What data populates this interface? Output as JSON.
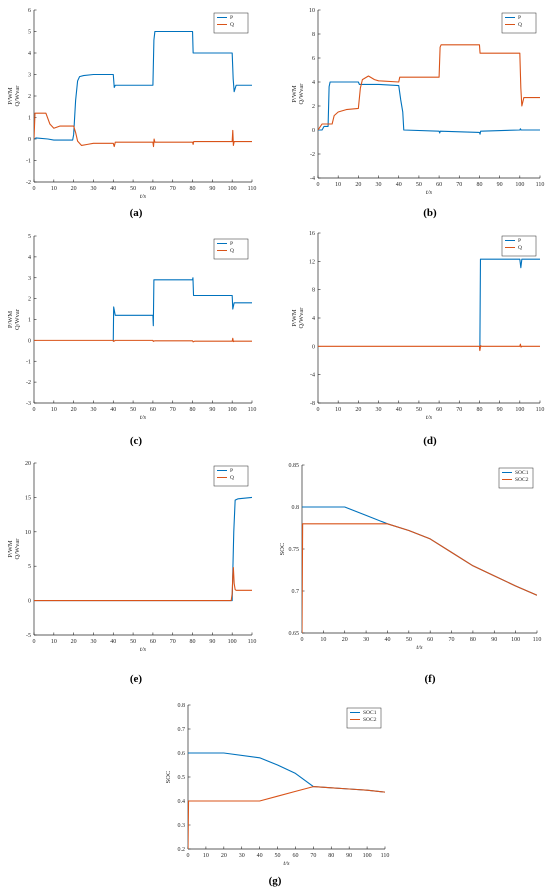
{
  "colors": {
    "series1": "#0072BD",
    "series2": "#D95319",
    "axis": "#262626"
  },
  "chart_data": [
    {
      "id": "a",
      "caption": "(a)",
      "type": "line",
      "xlabel": "t/s",
      "ylabel": "P/WM\nQ/Wvar",
      "xlim": [
        0,
        110
      ],
      "ylim": [
        -2,
        6
      ],
      "xticks": [
        0,
        10,
        20,
        30,
        40,
        50,
        60,
        70,
        80,
        90,
        100,
        110
      ],
      "yticks": [
        -2,
        -1,
        0,
        1,
        2,
        3,
        4,
        5,
        6
      ],
      "legend_position": "top-right",
      "series": [
        {
          "name": "P",
          "color": "#0072BD",
          "points": [
            [
              0,
              0
            ],
            [
              1,
              0.05
            ],
            [
              7,
              0
            ],
            [
              10,
              -0.05
            ],
            [
              19.5,
              -0.05
            ],
            [
              20,
              0.2
            ],
            [
              21,
              1.8
            ],
            [
              22,
              2.7
            ],
            [
              23,
              2.9
            ],
            [
              25,
              2.95
            ],
            [
              30,
              3.0
            ],
            [
              40,
              3.0
            ],
            [
              40.5,
              2.4
            ],
            [
              41,
              2.5
            ],
            [
              60,
              2.5
            ],
            [
              60.5,
              4.6
            ],
            [
              61,
              5.0
            ],
            [
              80,
              5.0
            ],
            [
              80.3,
              4.0
            ],
            [
              100,
              4.0
            ],
            [
              100.5,
              2.8
            ],
            [
              101,
              2.2
            ],
            [
              102,
              2.5
            ],
            [
              110,
              2.5
            ]
          ]
        },
        {
          "name": "Q",
          "color": "#D95319",
          "points": [
            [
              0,
              0
            ],
            [
              0.5,
              1.2
            ],
            [
              6,
              1.2
            ],
            [
              8,
              0.7
            ],
            [
              10,
              0.5
            ],
            [
              13,
              0.6
            ],
            [
              20,
              0.6
            ],
            [
              21,
              0.3
            ],
            [
              22,
              -0.1
            ],
            [
              24,
              -0.3
            ],
            [
              27,
              -0.25
            ],
            [
              30,
              -0.2
            ],
            [
              40,
              -0.2
            ],
            [
              40.5,
              -0.35
            ],
            [
              41,
              -0.15
            ],
            [
              60,
              -0.15
            ],
            [
              60.3,
              -0.35
            ],
            [
              60.6,
              0.0
            ],
            [
              61,
              -0.15
            ],
            [
              80,
              -0.15
            ],
            [
              80.3,
              -0.25
            ],
            [
              80.6,
              -0.12
            ],
            [
              100,
              -0.12
            ],
            [
              100.3,
              0.4
            ],
            [
              100.6,
              -0.3
            ],
            [
              101,
              -0.12
            ],
            [
              110,
              -0.12
            ]
          ]
        }
      ]
    },
    {
      "id": "b",
      "caption": "(b)",
      "type": "line",
      "xlabel": "t/s",
      "ylabel": "P/WM\nQ/Wvar",
      "xlim": [
        0,
        110
      ],
      "ylim": [
        -4,
        10
      ],
      "xticks": [
        0,
        10,
        20,
        30,
        40,
        50,
        60,
        70,
        80,
        90,
        100,
        110
      ],
      "yticks": [
        -4,
        -2,
        0,
        2,
        4,
        6,
        8,
        10
      ],
      "legend_position": "top-right",
      "series": [
        {
          "name": "P",
          "color": "#0072BD",
          "points": [
            [
              0,
              0
            ],
            [
              1,
              0
            ],
            [
              2,
              0
            ],
            [
              3,
              0.3
            ],
            [
              5,
              0.3
            ],
            [
              5.5,
              3.6
            ],
            [
              6,
              4.0
            ],
            [
              20,
              4.0
            ],
            [
              20.5,
              3.8
            ],
            [
              30,
              3.8
            ],
            [
              40,
              3.7
            ],
            [
              41,
              2.5
            ],
            [
              42,
              1.5
            ],
            [
              42.5,
              0
            ],
            [
              60,
              -0.1
            ],
            [
              60.3,
              -0.25
            ],
            [
              60.6,
              -0.1
            ],
            [
              80,
              -0.2
            ],
            [
              80.3,
              -0.35
            ],
            [
              80.6,
              -0.1
            ],
            [
              100,
              0
            ],
            [
              100.3,
              0.1
            ],
            [
              100.6,
              0
            ],
            [
              110,
              0
            ]
          ]
        },
        {
          "name": "Q",
          "color": "#D95319",
          "points": [
            [
              0,
              0
            ],
            [
              2,
              0.5
            ],
            [
              5,
              0.5
            ],
            [
              7,
              0.5
            ],
            [
              8,
              1.2
            ],
            [
              10,
              1.5
            ],
            [
              14,
              1.7
            ],
            [
              20,
              1.8
            ],
            [
              21,
              3.5
            ],
            [
              22,
              4.2
            ],
            [
              25,
              4.5
            ],
            [
              28,
              4.2
            ],
            [
              30,
              4.1
            ],
            [
              40,
              4.0
            ],
            [
              40.5,
              4.4
            ],
            [
              60,
              4.4
            ],
            [
              60.5,
              6.9
            ],
            [
              61,
              7.1
            ],
            [
              80,
              7.1
            ],
            [
              80.3,
              6.4
            ],
            [
              100,
              6.4
            ],
            [
              100.5,
              3.5
            ],
            [
              101,
              2.0
            ],
            [
              102,
              2.7
            ],
            [
              110,
              2.7
            ]
          ]
        }
      ]
    },
    {
      "id": "c",
      "caption": "(c)",
      "type": "line",
      "xlabel": "t/s",
      "ylabel": "P/WM\nQ/Wvar",
      "xlim": [
        0,
        110
      ],
      "ylim": [
        -3,
        5
      ],
      "xticks": [
        0,
        10,
        20,
        30,
        40,
        50,
        60,
        70,
        80,
        90,
        100,
        110
      ],
      "yticks": [
        -3,
        -2,
        -1,
        0,
        1,
        2,
        3,
        4,
        5
      ],
      "legend_position": "top-right",
      "series": [
        {
          "name": "P",
          "color": "#0072BD",
          "points": [
            [
              40,
              -0.05
            ],
            [
              40.2,
              1.6
            ],
            [
              41,
              1.2
            ],
            [
              60,
              1.2
            ],
            [
              60.2,
              0.7
            ],
            [
              60.5,
              2.9
            ],
            [
              80,
              2.9
            ],
            [
              80.2,
              3.0
            ],
            [
              80.5,
              2.15
            ],
            [
              100,
              2.15
            ],
            [
              100.3,
              1.5
            ],
            [
              101,
              1.8
            ],
            [
              110,
              1.8
            ]
          ]
        },
        {
          "name": "Q",
          "color": "#D95319",
          "points": [
            [
              0,
              0
            ],
            [
              40,
              0
            ],
            [
              40.2,
              -0.05
            ],
            [
              41,
              0
            ],
            [
              60,
              0
            ],
            [
              60.2,
              -0.05
            ],
            [
              61,
              -0.02
            ],
            [
              80,
              -0.02
            ],
            [
              80.3,
              -0.07
            ],
            [
              81,
              -0.04
            ],
            [
              100,
              -0.04
            ],
            [
              100.3,
              0.1
            ],
            [
              100.6,
              -0.06
            ],
            [
              101,
              -0.04
            ],
            [
              110,
              -0.04
            ]
          ]
        }
      ]
    },
    {
      "id": "d",
      "caption": "(d)",
      "type": "line",
      "xlabel": "t/s",
      "ylabel": "P/WM\nQ/Wvar",
      "xlim": [
        0,
        110
      ],
      "ylim": [
        -8,
        16
      ],
      "xticks": [
        0,
        10,
        20,
        30,
        40,
        50,
        60,
        70,
        80,
        90,
        100,
        110
      ],
      "yticks": [
        -8,
        -4,
        0,
        4,
        8,
        12,
        16
      ],
      "legend_position": "top-right",
      "series": [
        {
          "name": "P",
          "color": "#0072BD",
          "points": [
            [
              80,
              0
            ],
            [
              80.2,
              -0.5
            ],
            [
              80.5,
              12.3
            ],
            [
              100,
              12.3
            ],
            [
              100.5,
              11.1
            ],
            [
              101,
              12.3
            ],
            [
              110,
              12.3
            ]
          ]
        },
        {
          "name": "Q",
          "color": "#D95319",
          "points": [
            [
              0,
              0
            ],
            [
              80,
              0
            ],
            [
              80.2,
              -0.6
            ],
            [
              80.6,
              0.1
            ],
            [
              81,
              0
            ],
            [
              100,
              0
            ],
            [
              100.3,
              0.3
            ],
            [
              100.6,
              -0.1
            ],
            [
              101,
              0
            ],
            [
              110,
              0
            ]
          ]
        }
      ]
    },
    {
      "id": "e",
      "caption": "(e)",
      "type": "line",
      "xlabel": "t/s",
      "ylabel": "P/WM\nQ/Wvar",
      "xlim": [
        0,
        110
      ],
      "ylim": [
        -5,
        20
      ],
      "xticks": [
        0,
        10,
        20,
        30,
        40,
        50,
        60,
        70,
        80,
        90,
        100,
        110
      ],
      "yticks": [
        -5,
        0,
        5,
        10,
        15,
        20
      ],
      "legend_position": "top-right",
      "series": [
        {
          "name": "P",
          "color": "#0072BD",
          "points": [
            [
              0,
              0
            ],
            [
              100,
              0
            ],
            [
              100.3,
              4.0
            ],
            [
              100.8,
              10.0
            ],
            [
              101.5,
              14.6
            ],
            [
              103,
              14.8
            ],
            [
              110,
              15.0
            ]
          ]
        },
        {
          "name": "Q",
          "color": "#D95319",
          "points": [
            [
              0,
              0
            ],
            [
              99.5,
              0
            ],
            [
              100,
              1.0
            ],
            [
              100.3,
              3.5
            ],
            [
              100.6,
              4.8
            ],
            [
              101,
              2.5
            ],
            [
              101.5,
              1.6
            ],
            [
              102,
              1.5
            ],
            [
              110,
              1.5
            ]
          ]
        }
      ]
    },
    {
      "id": "f",
      "caption": "(f)",
      "type": "line",
      "xlabel": "t/s",
      "ylabel": "SOC",
      "xlim": [
        0,
        110
      ],
      "ylim": [
        0.65,
        0.85
      ],
      "xticks": [
        0,
        10,
        20,
        30,
        40,
        50,
        60,
        70,
        80,
        90,
        100,
        110
      ],
      "yticks": [
        0.65,
        0.7,
        0.75,
        0.8,
        0.85
      ],
      "legend_position": "top-right",
      "series": [
        {
          "name": "SOC1",
          "color": "#0072BD",
          "points": [
            [
              0,
              0.8
            ],
            [
              20,
              0.8
            ],
            [
              30,
              0.79
            ],
            [
              40,
              0.78
            ],
            [
              50,
              0.772
            ],
            [
              60,
              0.762
            ],
            [
              70,
              0.746
            ],
            [
              80,
              0.73
            ],
            [
              90,
              0.718
            ],
            [
              100,
              0.706
            ],
            [
              110,
              0.695
            ]
          ]
        },
        {
          "name": "SOC2",
          "color": "#D95319",
          "points": [
            [
              0,
              0.65
            ],
            [
              0.3,
              0.78
            ],
            [
              40,
              0.78
            ],
            [
              50,
              0.772
            ],
            [
              60,
              0.762
            ],
            [
              70,
              0.746
            ],
            [
              80,
              0.73
            ],
            [
              90,
              0.718
            ],
            [
              100,
              0.706
            ],
            [
              110,
              0.695
            ]
          ]
        }
      ]
    },
    {
      "id": "g",
      "caption": "(g)",
      "type": "line",
      "xlabel": "t/s",
      "ylabel": "SOC",
      "xlim": [
        0,
        110
      ],
      "ylim": [
        0.2,
        0.8
      ],
      "xticks": [
        0,
        10,
        20,
        30,
        40,
        50,
        60,
        70,
        80,
        90,
        100,
        110
      ],
      "yticks": [
        0.2,
        0.3,
        0.4,
        0.5,
        0.6,
        0.7,
        0.8
      ],
      "legend_position": "top-right",
      "series": [
        {
          "name": "SOC1",
          "color": "#0072BD",
          "points": [
            [
              0,
              0.6
            ],
            [
              20,
              0.6
            ],
            [
              40,
              0.58
            ],
            [
              50,
              0.55
            ],
            [
              60,
              0.515
            ],
            [
              70,
              0.46
            ],
            [
              80,
              0.455
            ],
            [
              90,
              0.45
            ],
            [
              100,
              0.445
            ],
            [
              110,
              0.437
            ]
          ]
        },
        {
          "name": "SOC2",
          "color": "#D95319",
          "points": [
            [
              0,
              0.2
            ],
            [
              0.3,
              0.4
            ],
            [
              40,
              0.4
            ],
            [
              50,
              0.42
            ],
            [
              60,
              0.44
            ],
            [
              70,
              0.46
            ],
            [
              80,
              0.455
            ],
            [
              90,
              0.45
            ],
            [
              100,
              0.445
            ],
            [
              110,
              0.437
            ]
          ]
        }
      ]
    }
  ]
}
